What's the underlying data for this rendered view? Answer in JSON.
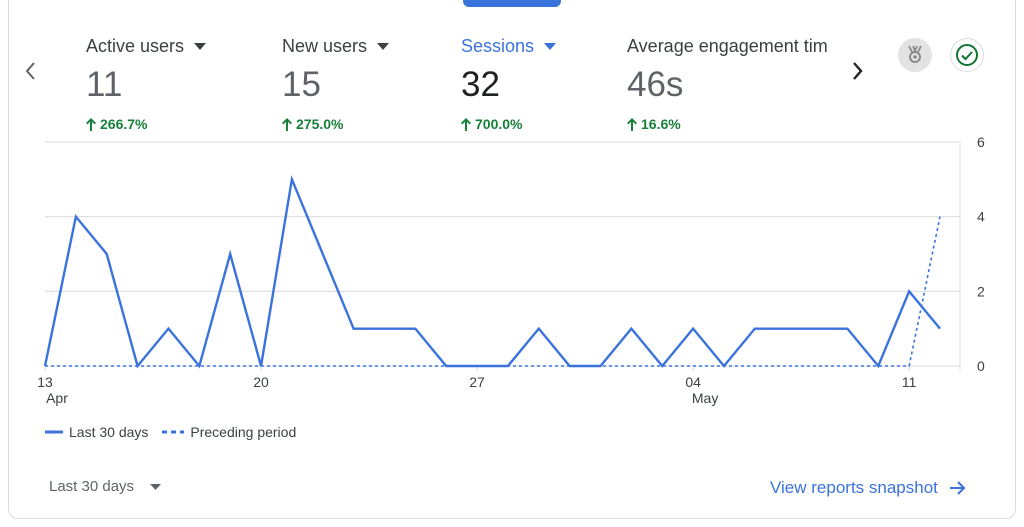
{
  "metrics": [
    {
      "label": "Active users",
      "value": "11",
      "change": "266.7%"
    },
    {
      "label": "New users",
      "value": "15",
      "change": "275.0%"
    },
    {
      "label": "Sessions",
      "value": "32",
      "change": "700.0%"
    },
    {
      "label": "Average engagement tim",
      "value": "46s",
      "change": "16.6%"
    }
  ],
  "active_metric": "Sessions",
  "colors": {
    "accent": "#3b73dd",
    "positive": "#188038",
    "line": "#3b73dd",
    "grid": "#dadce0"
  },
  "icons": {
    "prev": "chevron-left-icon",
    "next": "chevron-right-icon",
    "insight": "insight-icon",
    "check": "check-circle-icon",
    "arrow_up": "arrow-up-icon",
    "dropdown": "caret-down-icon",
    "link_arrow": "arrow-right-icon"
  },
  "chart_data": {
    "type": "line",
    "x": [
      "Apr 13",
      "Apr 14",
      "Apr 15",
      "Apr 16",
      "Apr 17",
      "Apr 18",
      "Apr 19",
      "Apr 20",
      "Apr 21",
      "Apr 22",
      "Apr 23",
      "Apr 24",
      "Apr 25",
      "Apr 26",
      "Apr 27",
      "Apr 28",
      "Apr 29",
      "Apr 30",
      "May 01",
      "May 02",
      "May 03",
      "May 04",
      "May 05",
      "May 06",
      "May 07",
      "May 08",
      "May 09",
      "May 10",
      "May 11",
      "May 12"
    ],
    "series": [
      {
        "name": "Last 30 days",
        "style": "solid",
        "values": [
          0,
          4,
          3,
          0,
          1,
          0,
          3,
          0,
          5,
          3,
          1,
          1,
          1,
          0,
          0,
          0,
          1,
          0,
          0,
          1,
          0,
          1,
          0,
          1,
          1,
          1,
          1,
          0,
          2,
          1
        ]
      },
      {
        "name": "Preceding period",
        "style": "dashed",
        "values": [
          0,
          0,
          0,
          0,
          0,
          0,
          0,
          0,
          0,
          0,
          0,
          0,
          0,
          0,
          0,
          0,
          0,
          0,
          0,
          0,
          0,
          0,
          0,
          0,
          0,
          0,
          0,
          0,
          0,
          4
        ]
      }
    ],
    "x_ticks": [
      {
        "index": 0,
        "day": "13",
        "month": "Apr"
      },
      {
        "index": 7,
        "day": "20",
        "month": ""
      },
      {
        "index": 14,
        "day": "27",
        "month": ""
      },
      {
        "index": 21,
        "day": "04",
        "month": "May"
      },
      {
        "index": 28,
        "day": "11",
        "month": ""
      }
    ],
    "y_ticks": [
      "0",
      "2",
      "4",
      "6"
    ],
    "ylim": [
      0,
      6
    ],
    "grid": true,
    "legend": "bottom-left"
  },
  "legend": {
    "current_label": "Last 30 days",
    "previous_label": "Preceding period"
  },
  "footer": {
    "date_range": "Last 30 days",
    "link_label": "View reports snapshot"
  }
}
